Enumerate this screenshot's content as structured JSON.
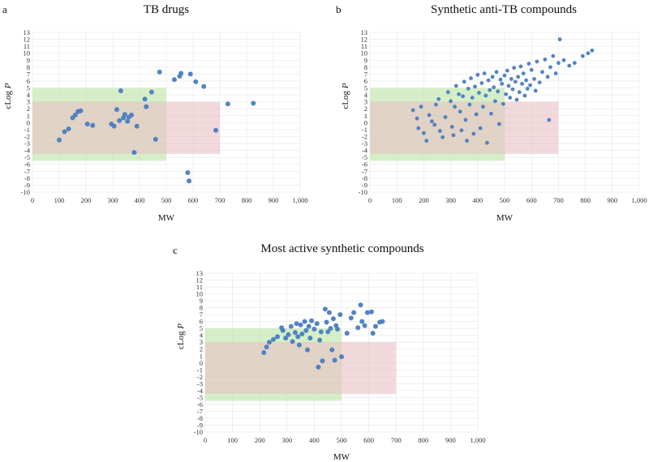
{
  "colors": {
    "point": "#4a7dc0",
    "green_zone": "#b5e29a",
    "red_zone": "#e8bfc4",
    "grid": "#e6e6e6"
  },
  "chart_data": [
    {
      "id": "a",
      "type": "scatter",
      "letter": "a",
      "title": "TB drugs",
      "xlabel": "MW",
      "ylabel_main": "cLog ",
      "ylabel_italic": "P",
      "xlim": [
        0,
        1000
      ],
      "ylim": [
        -10,
        13
      ],
      "xticks": [
        "0",
        "100",
        "200",
        "300",
        "400",
        "500",
        "600",
        "700",
        "800",
        "900",
        "1,000"
      ],
      "yticks": [
        "-10",
        "-9",
        "-8",
        "-7",
        "-6",
        "-5",
        "-4",
        "-3",
        "-2",
        "-1",
        "0",
        "1",
        "2",
        "3",
        "4",
        "5",
        "6",
        "7",
        "8",
        "9",
        "10",
        "11",
        "12",
        "13"
      ],
      "points": [
        [
          100,
          -2.5
        ],
        [
          120,
          -1.3
        ],
        [
          135,
          -0.9
        ],
        [
          150,
          0.7
        ],
        [
          160,
          1.1
        ],
        [
          170,
          1.6
        ],
        [
          180,
          1.7
        ],
        [
          205,
          -0.2
        ],
        [
          225,
          -0.4
        ],
        [
          295,
          -0.2
        ],
        [
          305,
          -0.5
        ],
        [
          315,
          1.9
        ],
        [
          325,
          0.3
        ],
        [
          330,
          4.6
        ],
        [
          340,
          0.7
        ],
        [
          345,
          1.2
        ],
        [
          355,
          0.2
        ],
        [
          360,
          0.8
        ],
        [
          370,
          1.1
        ],
        [
          380,
          -4.3
        ],
        [
          390,
          -0.5
        ],
        [
          420,
          3.4
        ],
        [
          425,
          2.3
        ],
        [
          445,
          4.4
        ],
        [
          460,
          -2.4
        ],
        [
          475,
          7.3
        ],
        [
          530,
          6.2
        ],
        [
          550,
          6.7
        ],
        [
          555,
          7.1
        ],
        [
          580,
          -7.2
        ],
        [
          585,
          -8.4
        ],
        [
          590,
          7.0
        ],
        [
          610,
          5.9
        ],
        [
          640,
          5.2
        ],
        [
          685,
          -1.1
        ],
        [
          730,
          2.7
        ],
        [
          825,
          2.8
        ]
      ]
    },
    {
      "id": "b",
      "type": "scatter",
      "letter": "b",
      "title": "Synthetic anti-TB compounds",
      "xlabel": "MW",
      "ylabel_main": "cLog ",
      "ylabel_italic": "P",
      "xlim": [
        0,
        1000
      ],
      "ylim": [
        -10,
        13
      ],
      "xticks": [
        "0",
        "100",
        "200",
        "300",
        "400",
        "500",
        "600",
        "700",
        "800",
        "900",
        "1,000"
      ],
      "yticks": [
        "-10",
        "-9",
        "-8",
        "-7",
        "-6",
        "-5",
        "-4",
        "-3",
        "-2",
        "-1",
        "0",
        "1",
        "2",
        "3",
        "4",
        "5",
        "6",
        "7",
        "8",
        "9",
        "10",
        "11",
        "12",
        "13"
      ],
      "points": [
        [
          160,
          1.8
        ],
        [
          175,
          0.6
        ],
        [
          180,
          -0.8
        ],
        [
          190,
          2.3
        ],
        [
          200,
          -1.5
        ],
        [
          210,
          -2.6
        ],
        [
          220,
          1.1
        ],
        [
          230,
          0.2
        ],
        [
          240,
          -0.3
        ],
        [
          245,
          2.6
        ],
        [
          255,
          3.4
        ],
        [
          260,
          -1.2
        ],
        [
          270,
          -2.1
        ],
        [
          280,
          0.8
        ],
        [
          290,
          4.4
        ],
        [
          300,
          3.1
        ],
        [
          305,
          -0.6
        ],
        [
          310,
          -1.8
        ],
        [
          315,
          2.3
        ],
        [
          320,
          5.3
        ],
        [
          330,
          4.1
        ],
        [
          335,
          1.6
        ],
        [
          340,
          -1.1
        ],
        [
          345,
          3.8
        ],
        [
          350,
          5.9
        ],
        [
          355,
          0.4
        ],
        [
          360,
          -2.6
        ],
        [
          365,
          4.9
        ],
        [
          370,
          2.6
        ],
        [
          375,
          6.4
        ],
        [
          380,
          3.6
        ],
        [
          385,
          -1.6
        ],
        [
          390,
          5.2
        ],
        [
          395,
          1.2
        ],
        [
          400,
          6.9
        ],
        [
          405,
          4.3
        ],
        [
          410,
          -0.8
        ],
        [
          415,
          5.7
        ],
        [
          420,
          2.3
        ],
        [
          425,
          7.1
        ],
        [
          430,
          3.9
        ],
        [
          435,
          -2.9
        ],
        [
          440,
          6.1
        ],
        [
          445,
          4.7
        ],
        [
          450,
          1.3
        ],
        [
          455,
          6.6
        ],
        [
          460,
          5.1
        ],
        [
          465,
          3.1
        ],
        [
          470,
          7.3
        ],
        [
          475,
          4.5
        ],
        [
          480,
          -0.2
        ],
        [
          485,
          6.2
        ],
        [
          490,
          5.6
        ],
        [
          495,
          2.7
        ],
        [
          500,
          6.8
        ],
        [
          505,
          4.1
        ],
        [
          510,
          7.5
        ],
        [
          515,
          5.3
        ],
        [
          520,
          3.6
        ],
        [
          525,
          6.3
        ],
        [
          530,
          4.8
        ],
        [
          535,
          7.9
        ],
        [
          540,
          5.9
        ],
        [
          545,
          3.3
        ],
        [
          550,
          6.6
        ],
        [
          555,
          4.4
        ],
        [
          560,
          8.1
        ],
        [
          565,
          5.6
        ],
        [
          570,
          7.1
        ],
        [
          575,
          3.9
        ],
        [
          580,
          6.1
        ],
        [
          585,
          4.9
        ],
        [
          590,
          8.5
        ],
        [
          595,
          5.4
        ],
        [
          600,
          7.6
        ],
        [
          610,
          6.3
        ],
        [
          615,
          4.6
        ],
        [
          620,
          8.8
        ],
        [
          630,
          5.8
        ],
        [
          640,
          7.3
        ],
        [
          650,
          9.1
        ],
        [
          660,
          6.6
        ],
        [
          665,
          0.4
        ],
        [
          670,
          8.0
        ],
        [
          680,
          9.6
        ],
        [
          690,
          7.1
        ],
        [
          700,
          8.6
        ],
        [
          705,
          12.0
        ],
        [
          720,
          9.0
        ],
        [
          740,
          8.2
        ],
        [
          760,
          8.6
        ],
        [
          790,
          9.6
        ],
        [
          810,
          10.0
        ],
        [
          825,
          10.4
        ]
      ]
    },
    {
      "id": "c",
      "type": "scatter",
      "letter": "c",
      "title": "Most active synthetic compounds",
      "xlabel": "MW",
      "ylabel_main": "cLog ",
      "ylabel_italic": "P",
      "xlim": [
        0,
        1000
      ],
      "ylim": [
        -10,
        13
      ],
      "xticks": [
        "0",
        "100",
        "200",
        "300",
        "400",
        "500",
        "600",
        "700",
        "800",
        "900",
        "1,000"
      ],
      "yticks": [
        "-10",
        "-9",
        "-8",
        "-7",
        "-6",
        "-5",
        "-4",
        "-3",
        "-2",
        "-1",
        "0",
        "1",
        "2",
        "3",
        "4",
        "5",
        "6",
        "7",
        "8",
        "9",
        "10",
        "11",
        "12",
        "13"
      ],
      "points": [
        [
          215,
          1.5
        ],
        [
          225,
          2.3
        ],
        [
          235,
          3.0
        ],
        [
          250,
          3.4
        ],
        [
          265,
          3.8
        ],
        [
          280,
          5.1
        ],
        [
          285,
          4.7
        ],
        [
          295,
          3.6
        ],
        [
          305,
          4.1
        ],
        [
          315,
          5.3
        ],
        [
          320,
          3.1
        ],
        [
          330,
          4.4
        ],
        [
          335,
          5.7
        ],
        [
          340,
          3.8
        ],
        [
          345,
          2.6
        ],
        [
          350,
          5.5
        ],
        [
          355,
          4.2
        ],
        [
          365,
          6.0
        ],
        [
          370,
          4.7
        ],
        [
          375,
          1.9
        ],
        [
          380,
          5.3
        ],
        [
          385,
          3.6
        ],
        [
          390,
          6.1
        ],
        [
          400,
          4.9
        ],
        [
          410,
          5.7
        ],
        [
          415,
          -0.6
        ],
        [
          420,
          3.3
        ],
        [
          425,
          4.5
        ],
        [
          430,
          0.3
        ],
        [
          440,
          7.8
        ],
        [
          445,
          5.9
        ],
        [
          450,
          4.5
        ],
        [
          455,
          7.3
        ],
        [
          460,
          5.0
        ],
        [
          465,
          1.9
        ],
        [
          470,
          6.4
        ],
        [
          475,
          0.4
        ],
        [
          480,
          5.4
        ],
        [
          485,
          4.9
        ],
        [
          495,
          7.0
        ],
        [
          500,
          0.9
        ],
        [
          520,
          4.3
        ],
        [
          535,
          6.5
        ],
        [
          545,
          7.3
        ],
        [
          560,
          5.1
        ],
        [
          570,
          8.4
        ],
        [
          575,
          6.0
        ],
        [
          585,
          5.4
        ],
        [
          595,
          7.3
        ],
        [
          610,
          7.4
        ],
        [
          615,
          4.3
        ],
        [
          625,
          5.3
        ],
        [
          640,
          5.9
        ],
        [
          650,
          6.0
        ]
      ]
    }
  ]
}
